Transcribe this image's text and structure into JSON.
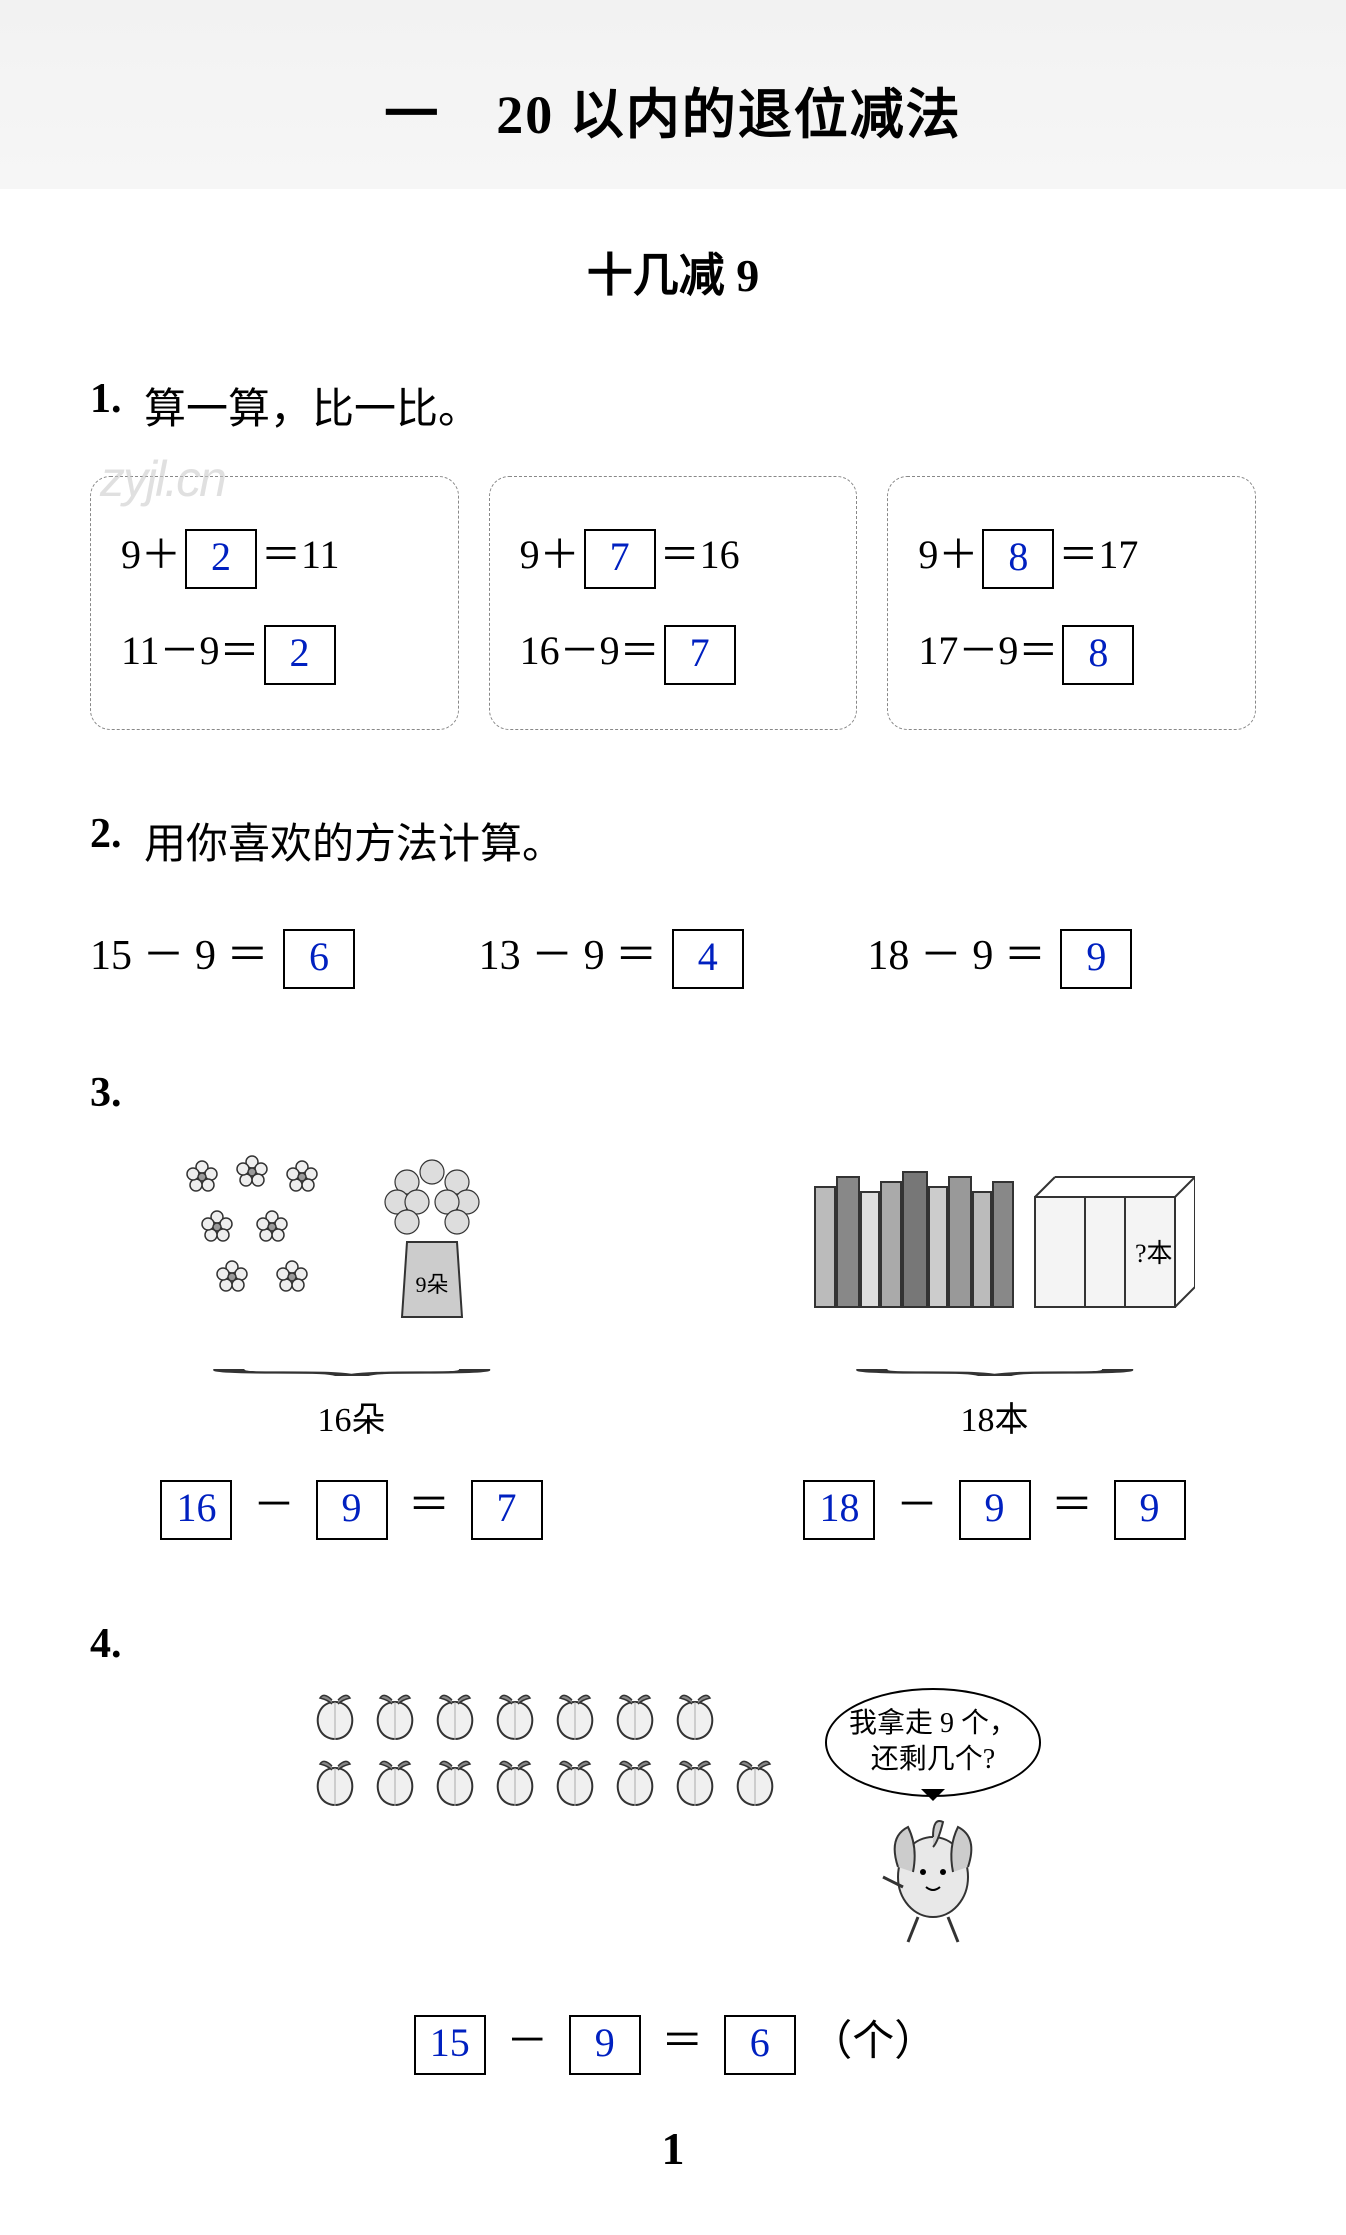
{
  "chapter_title": "一　20 以内的退位减法",
  "subtitle": "十几减 9",
  "watermark": "zyjl.cn",
  "page_number": "1",
  "colors": {
    "answer": "#0020c0",
    "text": "#000000",
    "dashed_border": "#888888",
    "header_bg": "#f3f3f3"
  },
  "p1": {
    "label": "1.",
    "text": "算一算，比一比。",
    "boxes": [
      {
        "add_left": "9＋",
        "add_ans": "2",
        "add_right": "＝11",
        "sub_left": "11－9＝",
        "sub_ans": "2"
      },
      {
        "add_left": "9＋",
        "add_ans": "7",
        "add_right": "＝16",
        "sub_left": "16－9＝",
        "sub_ans": "7"
      },
      {
        "add_left": "9＋",
        "add_ans": "8",
        "add_right": "＝17",
        "sub_left": "17－9＝",
        "sub_ans": "8"
      }
    ]
  },
  "p2": {
    "label": "2.",
    "text": "用你喜欢的方法计算。",
    "items": [
      {
        "expr": "15 － 9 ＝",
        "ans": "6"
      },
      {
        "expr": "13 － 9 ＝",
        "ans": "4"
      },
      {
        "expr": "18 － 9 ＝",
        "ans": "9"
      }
    ]
  },
  "p3": {
    "label": "3.",
    "left": {
      "caption": "16朵",
      "vase_label": "9朵",
      "a": "16",
      "b": "9",
      "c": "7"
    },
    "right": {
      "caption": "18本",
      "box_label": "?本",
      "a": "18",
      "b": "9",
      "c": "9"
    }
  },
  "p4": {
    "label": "4.",
    "bubble_line1": "我拿走 9 个，",
    "bubble_line2": "还剩几个?",
    "peach_row1": 7,
    "peach_row2": 8,
    "a": "15",
    "b": "9",
    "c": "6",
    "unit": "（个）"
  }
}
